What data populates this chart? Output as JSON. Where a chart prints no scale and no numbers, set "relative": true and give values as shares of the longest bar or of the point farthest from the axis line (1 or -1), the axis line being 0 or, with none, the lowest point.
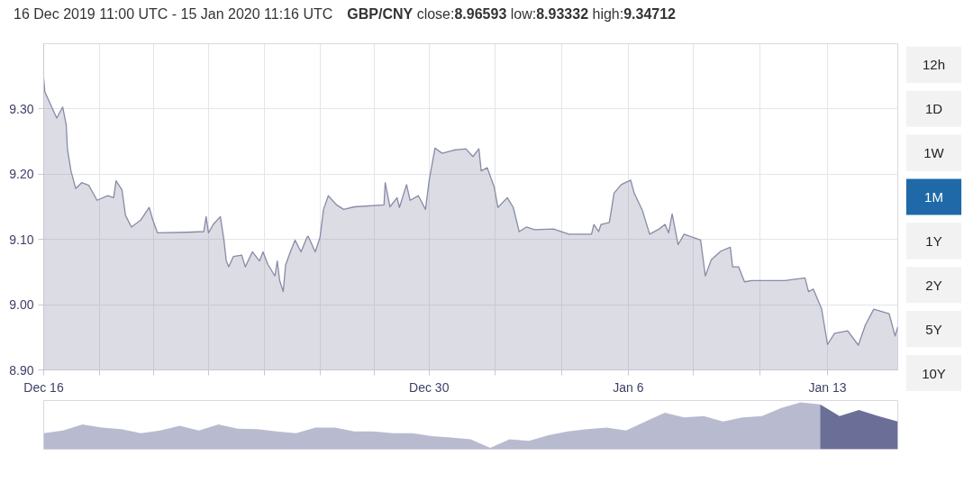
{
  "chart_data": [
    {
      "type": "area",
      "title": "16 Dec 2019 11:00 UTC - 15 Jan 2020 11:16 UTC",
      "subtitle": "GBP/CNY close:8.96593 low:8.93332 high:9.34712",
      "xlim": [
        "2019-12-16T11:00",
        "2020-01-15T11:16"
      ],
      "xticks": [
        {
          "value": "2019-12-16T11:00",
          "label": "Dec 16"
        },
        {
          "value": "2019-12-18T10:00",
          "label": null
        },
        {
          "value": "2019-12-20T08:00",
          "label": null
        },
        {
          "value": "2019-12-22T06:00",
          "label": null
        },
        {
          "value": "2019-12-24T05:00",
          "label": null
        },
        {
          "value": "2019-12-26T04:00",
          "label": null
        },
        {
          "value": "2019-12-28T02:00",
          "label": null
        },
        {
          "value": "2019-12-30",
          "label": "Dec 30"
        },
        {
          "value": "2020-01-01T08:00",
          "label": null
        },
        {
          "value": "2020-01-03T16:00",
          "label": null
        },
        {
          "value": "2020-01-06",
          "label": "Jan 6"
        },
        {
          "value": "2020-01-08T07:00",
          "label": null
        },
        {
          "value": "2020-01-10T15:00",
          "label": null
        },
        {
          "value": "2020-01-13",
          "label": "Jan 13"
        }
      ],
      "ylim": [
        8.9,
        9.4
      ],
      "yticks": [
        {
          "value": 8.9,
          "label": "8.90"
        },
        {
          "value": 9.0,
          "label": "9.00"
        },
        {
          "value": 9.1,
          "label": "9.10"
        },
        {
          "value": 9.2,
          "label": "9.20"
        },
        {
          "value": 9.3,
          "label": "9.30"
        }
      ],
      "grid": true,
      "series": [
        {
          "color": "#878ba6",
          "x": [
            "2019-12-16T11:00",
            "2019-12-16T12:00",
            "2019-12-16T22:00",
            "2019-12-17T03:00",
            "2019-12-17T06:00",
            "2019-12-17T07:00",
            "2019-12-17T10:00",
            "2019-12-17T14:00",
            "2019-12-17T19:00",
            "2019-12-18T01:00",
            "2019-12-18T08:00",
            "2019-12-18T17:00",
            "2019-12-18T22:00",
            "2019-12-19T00:00",
            "2019-12-19T05:00",
            "2019-12-19T08:00",
            "2019-12-19T13:00",
            "2019-12-19T21:00",
            "2019-12-20T04:00",
            "2019-12-20T07:00",
            "2019-12-20T11:00",
            "2019-12-21T12:00",
            "2019-12-22T02:00",
            "2019-12-22T04:00",
            "2019-12-22T06:00",
            "2019-12-22T10:00",
            "2019-12-22T16:00",
            "2019-12-22T19:00",
            "2019-12-22T21:00",
            "2019-12-22T23:00",
            "2019-12-23T03:00",
            "2019-12-23T10:00",
            "2019-12-23T13:00",
            "2019-12-23T19:00",
            "2019-12-24T01:00",
            "2019-12-24T04:00",
            "2019-12-24T08:00",
            "2019-12-24T14:00",
            "2019-12-24T16:00",
            "2019-12-24T18:00",
            "2019-12-24T21:00",
            "2019-12-24T23:00",
            "2019-12-25T03:00",
            "2019-12-25T07:00",
            "2019-12-25T12:00",
            "2019-12-25T17:00",
            "2019-12-25T18:00",
            "2019-12-26T00:00",
            "2019-12-26T04:00",
            "2019-12-26T07:00",
            "2019-12-26T11:00",
            "2019-12-26T18:00",
            "2019-12-27T00:00",
            "2019-12-27T09:00",
            "2019-12-28T10:00",
            "2019-12-28T11:00",
            "2019-12-28T15:00",
            "2019-12-28T21:00",
            "2019-12-28T23:00",
            "2019-12-29T05:00",
            "2019-12-29T08:00",
            "2019-12-29T15:00",
            "2019-12-29T21:00",
            "2019-12-30T00:00",
            "2019-12-30T05:00",
            "2019-12-30T11:00",
            "2019-12-30T21:00",
            "2019-12-31T07:00",
            "2019-12-31T13:00",
            "2019-12-31T18:00",
            "2019-12-31T20:00",
            "2020-01-01T01:00",
            "2020-01-01T07:00",
            "2020-01-01T10:00",
            "2020-01-01T18:00",
            "2020-01-01T23:00",
            "2020-01-02T04:00",
            "2020-01-02T10:00",
            "2020-01-02T17:00",
            "2020-01-03T09:00",
            "2020-01-03T22:00",
            "2020-01-04T17:00",
            "2020-01-04T19:00",
            "2020-01-04T23:00",
            "2020-01-05T01:00",
            "2020-01-05T08:00",
            "2020-01-05T12:00",
            "2020-01-05T18:00",
            "2020-01-06T02:00",
            "2020-01-06T05:00",
            "2020-01-06T12:00",
            "2020-01-06T18:00",
            "2020-01-07T02:00",
            "2020-01-07T07:00",
            "2020-01-07T10:00",
            "2020-01-07T13:00",
            "2020-01-07T18:00",
            "2020-01-07T23:00",
            "2020-01-08T07:00",
            "2020-01-08T13:00",
            "2020-01-08T17:00",
            "2020-01-08T22:00",
            "2020-01-09T06:00",
            "2020-01-09T14:00",
            "2020-01-09T16:00",
            "2020-01-09T21:00",
            "2020-01-10T02:00",
            "2020-01-10T08:00",
            "2020-01-11T12:00",
            "2020-01-12T05:00",
            "2020-01-12T08:00",
            "2020-01-12T12:00",
            "2020-01-12T19:00",
            "2020-01-13T00:00",
            "2020-01-13T06:00",
            "2020-01-13T17:00",
            "2020-01-14T02:00",
            "2020-01-14T08:00",
            "2020-01-14T15:00",
            "2020-01-15T04:00",
            "2020-01-15T09:00",
            "2020-01-15T11:16"
          ],
          "values": [
            9.347,
            9.326,
            9.286,
            9.303,
            9.276,
            9.239,
            9.205,
            9.178,
            9.187,
            9.183,
            9.16,
            9.167,
            9.164,
            9.19,
            9.176,
            9.137,
            9.119,
            9.13,
            9.149,
            9.13,
            9.11,
            9.111,
            9.112,
            9.135,
            9.11,
            9.123,
            9.135,
            9.099,
            9.067,
            9.058,
            9.074,
            9.076,
            9.058,
            9.081,
            9.067,
            9.081,
            9.062,
            9.044,
            9.067,
            9.037,
            9.02,
            9.061,
            9.081,
            9.099,
            9.081,
            9.103,
            9.105,
            9.081,
            9.103,
            9.146,
            9.167,
            9.153,
            9.146,
            9.15,
            9.153,
            9.187,
            9.15,
            9.164,
            9.149,
            9.184,
            9.16,
            9.167,
            9.146,
            9.19,
            9.24,
            9.232,
            9.237,
            9.239,
            9.227,
            9.239,
            9.205,
            9.21,
            9.18,
            9.149,
            9.164,
            9.149,
            9.112,
            9.119,
            9.115,
            9.116,
            9.108,
            9.108,
            9.123,
            9.112,
            9.123,
            9.126,
            9.171,
            9.184,
            9.191,
            9.171,
            9.144,
            9.108,
            9.116,
            9.123,
            9.11,
            9.139,
            9.092,
            9.108,
            9.103,
            9.099,
            9.044,
            9.069,
            9.082,
            9.088,
            9.058,
            9.058,
            9.035,
            9.037,
            9.037,
            9.041,
            9.02,
            9.024,
            8.994,
            8.939,
            8.956,
            8.96,
            8.938,
            8.969,
            8.993,
            8.986,
            8.952,
            8.966
          ]
        }
      ]
    },
    {
      "type": "area",
      "relative": true,
      "categories": [
        null,
        null,
        null,
        null,
        null,
        null,
        null,
        null,
        null,
        null,
        null,
        null,
        null,
        null,
        null,
        null,
        null,
        null,
        null,
        null,
        null,
        null,
        null,
        null,
        null,
        null,
        null,
        null,
        null,
        null,
        null,
        null,
        null,
        null,
        null,
        null,
        null,
        null,
        null,
        null,
        null,
        null,
        null,
        null,
        null
      ],
      "series": [
        {
          "color": "#b8bbd0",
          "values": [
            0.34,
            0.4,
            0.53,
            0.46,
            0.43,
            0.34,
            0.4,
            0.5,
            0.4,
            0.53,
            0.44,
            0.43,
            0.38,
            0.34,
            0.46,
            0.46,
            0.38,
            0.38,
            0.34,
            0.34,
            0.28,
            0.25,
            0.21,
            0.03,
            0.21,
            0.18,
            0.3,
            0.38,
            0.43,
            0.46,
            0.4,
            0.59,
            0.78,
            0.68,
            0.71,
            0.59,
            0.68,
            0.71,
            0.88,
            1.0,
            0.96,
            null,
            null,
            null,
            null
          ]
        },
        {
          "color": "#6b6f98",
          "values": [
            null,
            null,
            null,
            null,
            null,
            null,
            null,
            null,
            null,
            null,
            null,
            null,
            null,
            null,
            null,
            null,
            null,
            null,
            null,
            null,
            null,
            null,
            null,
            null,
            null,
            null,
            null,
            null,
            null,
            null,
            null,
            null,
            null,
            null,
            null,
            null,
            null,
            null,
            null,
            null,
            0.96,
            0.71,
            0.84,
            0.71,
            0.59
          ]
        }
      ]
    },
    {
      "type": "other",
      "categories": [
        "12h",
        "1D",
        "1W",
        "1M",
        "1Y",
        "2Y",
        "5Y",
        "10Y"
      ],
      "colors": [
        "#f2f2f2",
        "#f2f2f2",
        "#f2f2f2",
        "#1f69a8",
        "#f2f2f2",
        "#f2f2f2",
        "#f2f2f2",
        "#f2f2f2"
      ]
    }
  ]
}
